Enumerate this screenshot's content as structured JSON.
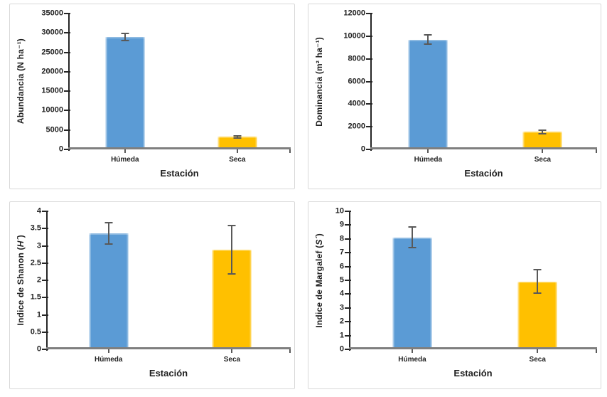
{
  "colors": {
    "humeda_bar": "#5B9BD5",
    "seca_bar": "#FFC000",
    "error_bar": "#595959",
    "y_axis": "#262626",
    "x_axis": "#7F7F7F",
    "panel_border": "#D9D9D9",
    "text": "#1F1F1F"
  },
  "chart_data": [
    {
      "type": "bar",
      "ylabel_prefix": "Abundancia (N ha⁻¹)",
      "ylabel_var": "",
      "ylabel_suffix": "",
      "xlabel": "Estación",
      "categories": [
        "Húmeda",
        "Seca"
      ],
      "values": [
        29000,
        3250
      ],
      "errors": [
        900,
        300
      ],
      "ylim": [
        0,
        35000
      ],
      "yticks": [
        0,
        5000,
        10000,
        15000,
        20000,
        25000,
        30000,
        35000
      ],
      "bar_colors": [
        "#5B9BD5",
        "#FFC000"
      ],
      "grid": false,
      "legend": "none"
    },
    {
      "type": "bar",
      "ylabel_prefix": "Dominancia (m² ha⁻¹)",
      "ylabel_var": "",
      "ylabel_suffix": "",
      "xlabel": "Estación",
      "categories": [
        "Húmeda",
        "Seca"
      ],
      "values": [
        9700,
        1550
      ],
      "errors": [
        400,
        150
      ],
      "ylim": [
        0,
        12000
      ],
      "yticks": [
        0,
        2000,
        4000,
        6000,
        8000,
        10000,
        12000
      ],
      "bar_colors": [
        "#5B9BD5",
        "#FFC000"
      ],
      "grid": false,
      "legend": "none"
    },
    {
      "type": "bar",
      "ylabel_prefix": "Indice de Shanon (",
      "ylabel_var": "H´",
      "ylabel_suffix": ")",
      "xlabel": "Estación",
      "categories": [
        "Húmeda",
        "Seca"
      ],
      "values": [
        3.37,
        2.88
      ],
      "errors": [
        0.31,
        0.7
      ],
      "ylim": [
        0,
        4
      ],
      "yticks": [
        0,
        0.5,
        1,
        1.5,
        2,
        2.5,
        3,
        3.5,
        4
      ],
      "bar_colors": [
        "#5B9BD5",
        "#FFC000"
      ],
      "grid": false,
      "legend": "none"
    },
    {
      "type": "bar",
      "ylabel_prefix": "Indice de Margalef (",
      "ylabel_var": "S´",
      "ylabel_suffix": ")",
      "xlabel": "Estación",
      "categories": [
        "Húmeda",
        "Seca"
      ],
      "values": [
        8.1,
        4.9
      ],
      "errors": [
        0.75,
        0.85
      ],
      "ylim": [
        0,
        10
      ],
      "yticks": [
        0,
        1,
        2,
        3,
        4,
        5,
        6,
        7,
        8,
        9,
        10
      ],
      "bar_colors": [
        "#5B9BD5",
        "#FFC000"
      ],
      "grid": false,
      "legend": "none"
    }
  ]
}
